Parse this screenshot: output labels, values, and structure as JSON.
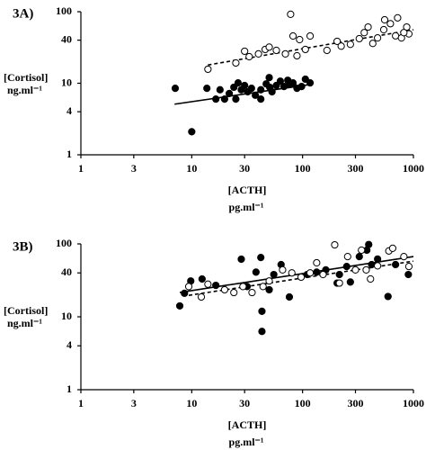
{
  "chart_data": [
    {
      "type": "scatter",
      "title": "3A)",
      "ylabel": "[Cortisol]",
      "yunit": "ng.ml⁻¹",
      "xlabel": "[ACTH]",
      "xunit": "pg.ml⁻¹",
      "xscale": "log",
      "yscale": "log",
      "xlim": [
        1,
        1000
      ],
      "ylim": [
        1,
        100
      ],
      "xticks": [
        1,
        3,
        10,
        30,
        100,
        300,
        1000
      ],
      "yticks": [
        1,
        4,
        10,
        40,
        100
      ],
      "series": [
        {
          "marker": "filled",
          "color": "#000000",
          "x": [
            7.1,
            10,
            13.7,
            18,
            16.5,
            19.8,
            21.8,
            24,
            26.2,
            28,
            30,
            32,
            34.6,
            37.5,
            42,
            47,
            50.5,
            53,
            58,
            63,
            68,
            73.5,
            77,
            82,
            89,
            98,
            106,
            117,
            42,
            25,
            50
          ],
          "values": [
            8.5,
            2.1,
            8.5,
            8.1,
            6,
            6,
            7.2,
            8.8,
            10.1,
            8.1,
            9.3,
            7.6,
            8.5,
            6.8,
            8.1,
            9.8,
            8.8,
            7.6,
            9.3,
            10.7,
            9,
            11,
            9.6,
            10.1,
            8.5,
            9,
            11.4,
            10.1,
            6,
            6,
            12
          ],
          "fit": {
            "x": [
              7,
              117
            ],
            "values": [
              5.1,
              9.6
            ],
            "dash": false
          }
        },
        {
          "marker": "open",
          "color": "#000000",
          "x": [
            14,
            30,
            33,
            25,
            40,
            46,
            50,
            58,
            70,
            78,
            82,
            94,
            106,
            117,
            89,
            166,
            205,
            223,
            270,
            325,
            360,
            390,
            430,
            475,
            540,
            550,
            620,
            690,
            780,
            870,
            910,
            720,
            820
          ],
          "values": [
            15.7,
            28,
            23.5,
            19.2,
            25.7,
            29.7,
            32,
            28.8,
            25.7,
            92,
            45.7,
            40.7,
            29.7,
            45.7,
            24.2,
            28.8,
            38.5,
            33,
            35,
            42,
            51,
            61,
            36,
            43,
            56,
            77,
            68,
            46,
            43,
            61,
            49,
            82,
            51
          ],
          "fit": {
            "x": [
              14,
              1000
            ],
            "values": [
              18,
              56
            ],
            "dash": true
          }
        }
      ]
    },
    {
      "type": "scatter",
      "title": "3B)",
      "ylabel": "[Cortisol]",
      "yunit": "ng.ml⁻¹",
      "xlabel": "[ACTH]",
      "xunit": "pg.ml⁻¹",
      "xscale": "log",
      "yscale": "log",
      "xlim": [
        1,
        1000
      ],
      "ylim": [
        1,
        100
      ],
      "xticks": [
        1,
        3,
        10,
        30,
        100,
        300,
        1000
      ],
      "yticks": [
        1,
        4,
        10,
        40,
        100
      ],
      "series": [
        {
          "marker": "filled",
          "color": "#000000",
          "x": [
            7.8,
            8.6,
            9.8,
            12.4,
            16.5,
            28,
            31.6,
            38,
            42,
            43,
            43,
            50,
            55,
            64,
            76,
            110,
            134,
            162,
            205,
            215,
            250,
            270,
            325,
            380,
            420,
            395,
            475,
            590,
            690,
            900
          ],
          "values": [
            14.1,
            21,
            31,
            33,
            27,
            61.7,
            26,
            41,
            65,
            11.9,
            6.3,
            23.5,
            38,
            52,
            18.7,
            38,
            41,
            44,
            29,
            38,
            49,
            30,
            67,
            82,
            52,
            98,
            62,
            19,
            52,
            38
          ],
          "fit": {
            "x": [
              7.8,
              1000
            ],
            "values": [
              21.6,
              67
            ],
            "dash": false
          }
        },
        {
          "marker": "open",
          "color": "#000000",
          "x": [
            9.4,
            12.2,
            14,
            19.8,
            24,
            29,
            35,
            44,
            50,
            66,
            80,
            97,
            117,
            134,
            153,
            195,
            215,
            255,
            300,
            340,
            375,
            410,
            475,
            600,
            650,
            910,
            820
          ],
          "values": [
            26,
            18.7,
            28,
            23.5,
            21.5,
            26,
            21.5,
            26,
            31,
            44,
            40,
            35,
            40,
            55,
            38,
            97,
            29,
            67,
            44,
            82,
            44,
            33,
            50,
            80,
            87,
            49,
            67
          ],
          "fit": {
            "x": [
              9.4,
              1000
            ],
            "values": [
              19.7,
              58
            ],
            "dash": true
          }
        }
      ]
    }
  ]
}
